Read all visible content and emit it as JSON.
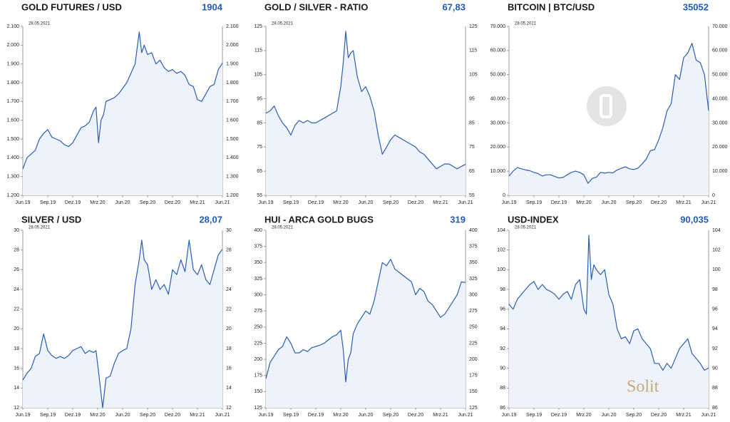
{
  "chart_data": [
    {
      "type": "line",
      "title": "GOLD FUTURES / USD",
      "value_label": "1904",
      "date": "28.05.2021",
      "color": "#2a5db0",
      "x": [
        0,
        0.5,
        1,
        1.5,
        2,
        2.5,
        3,
        3.5,
        4,
        4.5,
        5,
        5.5,
        6,
        6.5,
        7,
        7.5,
        8,
        8.5,
        8.8,
        9.1,
        9.4,
        9.7,
        10,
        10.5,
        11,
        11.5,
        12,
        12.5,
        13,
        13.5,
        14,
        14.3,
        14.6,
        15,
        15.5,
        16,
        16.5,
        17,
        17.5,
        18,
        18.5,
        19,
        19.5,
        20,
        20.5,
        21,
        21.5,
        22,
        22.5,
        23,
        23.5,
        24
      ],
      "values": [
        1340,
        1400,
        1420,
        1440,
        1500,
        1530,
        1550,
        1510,
        1500,
        1490,
        1470,
        1460,
        1480,
        1520,
        1560,
        1570,
        1590,
        1650,
        1670,
        1480,
        1600,
        1630,
        1700,
        1710,
        1720,
        1740,
        1770,
        1800,
        1850,
        1900,
        2070,
        1960,
        2000,
        1950,
        1960,
        1900,
        1920,
        1880,
        1860,
        1870,
        1850,
        1860,
        1840,
        1790,
        1780,
        1710,
        1700,
        1740,
        1780,
        1790,
        1870,
        1904
      ],
      "xlim": [
        0,
        24
      ],
      "xticks": [
        {
          "value": 0,
          "label": "Jun.19"
        },
        {
          "value": 3,
          "label": "Sep.19"
        },
        {
          "value": 6,
          "label": "Dez.19"
        },
        {
          "value": 9,
          "label": "Mrz.20"
        },
        {
          "value": 12,
          "label": "Jun.20"
        },
        {
          "value": 15,
          "label": "Sep.20"
        },
        {
          "value": 18,
          "label": "Dez.20"
        },
        {
          "value": 21,
          "label": "Mrz.21"
        },
        {
          "value": 24,
          "label": "Jun.21"
        }
      ],
      "ylim": [
        1200,
        2100
      ],
      "yticks": [
        {
          "value": 1200,
          "label": "1.200"
        },
        {
          "value": 1300,
          "label": "1.300"
        },
        {
          "value": 1400,
          "label": "1.400"
        },
        {
          "value": 1500,
          "label": "1.500"
        },
        {
          "value": 1600,
          "label": "1.600"
        },
        {
          "value": 1700,
          "label": "1.700"
        },
        {
          "value": 1800,
          "label": "1.800"
        },
        {
          "value": 1900,
          "label": "1.900"
        },
        {
          "value": 2000,
          "label": "2.000"
        },
        {
          "value": 2100,
          "label": "2.100"
        }
      ]
    },
    {
      "type": "line",
      "title": "GOLD / SILVER - RATIO",
      "value_label": "67,83",
      "date": "28.05.2021",
      "color": "#2a5db0",
      "x": [
        0,
        0.5,
        1,
        1.5,
        2,
        2.5,
        3,
        3.5,
        4,
        4.5,
        5,
        5.5,
        6,
        6.5,
        7,
        7.5,
        8,
        8.5,
        9,
        9.3,
        9.6,
        9.9,
        10.2,
        10.5,
        11,
        11.5,
        12,
        12.5,
        13,
        13.5,
        14,
        14.5,
        15,
        15.5,
        16,
        16.5,
        17,
        17.5,
        18,
        18.5,
        19,
        19.5,
        20,
        20.5,
        21,
        21.5,
        22,
        22.5,
        23,
        23.5,
        24
      ],
      "values": [
        89,
        90,
        92,
        88,
        85,
        83,
        80,
        84,
        86,
        85,
        86,
        85,
        85,
        86,
        87,
        88,
        89,
        90,
        100,
        110,
        123,
        112,
        114,
        115,
        104,
        98,
        100,
        96,
        90,
        80,
        72,
        75,
        78,
        80,
        79,
        78,
        77,
        76,
        75,
        73,
        72,
        70,
        68,
        66,
        67,
        68,
        68,
        67,
        66,
        67,
        67.83
      ],
      "xlim": [
        0,
        24
      ],
      "xticks": [
        {
          "value": 0,
          "label": "Jun.19"
        },
        {
          "value": 3,
          "label": "Sep.19"
        },
        {
          "value": 6,
          "label": "Dez.19"
        },
        {
          "value": 9,
          "label": "Mrz.20"
        },
        {
          "value": 12,
          "label": "Jun.20"
        },
        {
          "value": 15,
          "label": "Sep.20"
        },
        {
          "value": 18,
          "label": "Dez.20"
        },
        {
          "value": 21,
          "label": "Mrz.21"
        },
        {
          "value": 24,
          "label": "Jun.21"
        }
      ],
      "ylim": [
        55,
        125
      ],
      "yticks": [
        55,
        65,
        75,
        85,
        95,
        105,
        115,
        125
      ]
    },
    {
      "type": "line",
      "title": "BITCOIN | BTC/USD",
      "value_label": "35052",
      "date": "28.05.2021",
      "color": "#2a5db0",
      "x": [
        0,
        0.5,
        1,
        1.5,
        2,
        2.5,
        3,
        3.5,
        4,
        4.5,
        5,
        5.5,
        6,
        6.5,
        7,
        7.5,
        8,
        8.5,
        9,
        9.5,
        10,
        10.5,
        11,
        11.5,
        12,
        12.5,
        13,
        13.5,
        14,
        14.5,
        15,
        15.5,
        16,
        16.5,
        17,
        17.5,
        18,
        18.5,
        19,
        19.5,
        20,
        20.5,
        21,
        21.5,
        22,
        22.5,
        23,
        23.5,
        24
      ],
      "values": [
        8000,
        10000,
        11500,
        11000,
        10500,
        10200,
        9500,
        9000,
        8000,
        8500,
        8500,
        7800,
        7200,
        7400,
        8500,
        9500,
        10000,
        9500,
        8500,
        5000,
        7000,
        7500,
        9500,
        9200,
        9500,
        9300,
        10500,
        11200,
        11800,
        11000,
        10700,
        11200,
        13000,
        15000,
        18500,
        19000,
        23000,
        28000,
        35000,
        38000,
        50000,
        48000,
        57000,
        59000,
        63000,
        56000,
        55000,
        50000,
        35052
      ],
      "xlim": [
        0,
        24
      ],
      "xticks": [
        {
          "value": 0,
          "label": "Jun.19"
        },
        {
          "value": 3,
          "label": "Sep.19"
        },
        {
          "value": 6,
          "label": "Dez.19"
        },
        {
          "value": 9,
          "label": "Mrz.20"
        },
        {
          "value": 12,
          "label": "Jun.20"
        },
        {
          "value": 15,
          "label": "Sep.20"
        },
        {
          "value": 18,
          "label": "Dez.20"
        },
        {
          "value": 21,
          "label": "Mrz.21"
        },
        {
          "value": 24,
          "label": "Jun.21"
        }
      ],
      "ylim": [
        0,
        70000
      ],
      "yticks": [
        0,
        {
          "value": 10000,
          "label": "10.000"
        },
        {
          "value": 20000,
          "label": "20.000"
        },
        {
          "value": 30000,
          "label": "30.000"
        },
        {
          "value": 40000,
          "label": "40.000"
        },
        {
          "value": 50000,
          "label": "50.000"
        },
        {
          "value": 60000,
          "label": "60.000"
        },
        {
          "value": 70000,
          "label": "70.000"
        }
      ]
    },
    {
      "type": "line",
      "title": "SILVER / USD",
      "value_label": "28,07",
      "date": "28.05.2021",
      "color": "#2a5db0",
      "x": [
        0,
        0.5,
        1,
        1.5,
        2,
        2.5,
        3,
        3.5,
        4,
        4.5,
        5,
        5.5,
        6,
        6.5,
        7,
        7.5,
        8,
        8.5,
        8.8,
        9.2,
        9.6,
        10,
        10.5,
        11,
        11.5,
        12,
        12.5,
        13,
        13.5,
        14,
        14.3,
        14.6,
        15,
        15.5,
        16,
        16.5,
        17,
        17.5,
        18,
        18.5,
        19,
        19.5,
        20,
        20.5,
        21,
        21.5,
        22,
        22.5,
        23,
        23.5,
        24
      ],
      "values": [
        14.8,
        15.5,
        16.0,
        17.2,
        17.5,
        19.5,
        17.8,
        17.3,
        17.0,
        17.2,
        17.0,
        17.3,
        17.8,
        18.0,
        18.2,
        17.5,
        17.8,
        17.6,
        17.8,
        15.0,
        12.0,
        15.0,
        15.2,
        16.5,
        17.5,
        17.8,
        18.0,
        20.0,
        24.5,
        27.0,
        29.0,
        27.0,
        26.5,
        24.0,
        25.0,
        24.0,
        24.5,
        23.5,
        26.0,
        25.5,
        27.0,
        25.8,
        29.0,
        26.0,
        25.5,
        26.5,
        25.0,
        24.5,
        26.0,
        27.5,
        28.07
      ],
      "xlim": [
        0,
        24
      ],
      "xticks": [
        {
          "value": 0,
          "label": "Jun.19"
        },
        {
          "value": 3,
          "label": "Sep.19"
        },
        {
          "value": 6,
          "label": "Dez.19"
        },
        {
          "value": 9,
          "label": "Mrz.20"
        },
        {
          "value": 12,
          "label": "Jun.20"
        },
        {
          "value": 15,
          "label": "Sep.20"
        },
        {
          "value": 18,
          "label": "Dez.20"
        },
        {
          "value": 21,
          "label": "Mrz.21"
        },
        {
          "value": 24,
          "label": "Jun.21"
        }
      ],
      "ylim": [
        12,
        30
      ],
      "yticks": [
        12,
        14,
        16,
        18,
        20,
        22,
        24,
        26,
        28,
        30
      ]
    },
    {
      "type": "line",
      "title": "HUI - ARCA GOLD BUGS",
      "value_label": "319",
      "date": "28.05.2021",
      "color": "#2a5db0",
      "x": [
        0,
        0.5,
        1,
        1.5,
        2,
        2.5,
        3,
        3.5,
        4,
        4.5,
        5,
        5.5,
        6,
        6.5,
        7,
        7.5,
        8,
        8.5,
        9,
        9.3,
        9.6,
        9.9,
        10.2,
        10.5,
        11,
        11.5,
        12,
        12.5,
        13,
        13.5,
        14,
        14.5,
        15,
        15.5,
        16,
        16.5,
        17,
        17.5,
        18,
        18.5,
        19,
        19.5,
        20,
        20.5,
        21,
        21.5,
        22,
        22.5,
        23,
        23.5,
        24
      ],
      "values": [
        170,
        195,
        205,
        215,
        220,
        235,
        225,
        210,
        210,
        215,
        212,
        218,
        220,
        222,
        225,
        230,
        235,
        238,
        245,
        215,
        165,
        200,
        210,
        240,
        255,
        265,
        275,
        270,
        290,
        320,
        350,
        345,
        355,
        340,
        335,
        330,
        325,
        320,
        300,
        310,
        305,
        290,
        285,
        275,
        265,
        270,
        280,
        290,
        300,
        320,
        319
      ],
      "xlim": [
        0,
        24
      ],
      "xticks": [
        {
          "value": 0,
          "label": "Jun.19"
        },
        {
          "value": 3,
          "label": "Sep.19"
        },
        {
          "value": 6,
          "label": "Dez.19"
        },
        {
          "value": 9,
          "label": "Mrz.20"
        },
        {
          "value": 12,
          "label": "Jun.20"
        },
        {
          "value": 15,
          "label": "Sep.20"
        },
        {
          "value": 18,
          "label": "Dez.20"
        },
        {
          "value": 21,
          "label": "Mrz.21"
        },
        {
          "value": 24,
          "label": "Jun.21"
        }
      ],
      "ylim": [
        125,
        400
      ],
      "yticks": [
        125,
        150,
        175,
        200,
        225,
        250,
        275,
        300,
        325,
        350,
        375,
        400
      ]
    },
    {
      "type": "line",
      "title": "USD-INDEX",
      "value_label": "90,035",
      "date": "28.05.2021",
      "watermark": "Solit",
      "color": "#2a5db0",
      "x": [
        0,
        0.5,
        1,
        1.5,
        2,
        2.5,
        3,
        3.5,
        4,
        4.5,
        5,
        5.5,
        6,
        6.5,
        7,
        7.5,
        8,
        8.5,
        9,
        9.3,
        9.6,
        9.9,
        10.2,
        10.5,
        11,
        11.5,
        12,
        12.5,
        13,
        13.5,
        14,
        14.5,
        15,
        15.5,
        16,
        16.5,
        17,
        17.5,
        18,
        18.5,
        19,
        19.5,
        20,
        20.5,
        21,
        21.5,
        22,
        22.5,
        23,
        23.5,
        24
      ],
      "values": [
        96.5,
        96.0,
        97.0,
        97.5,
        98.0,
        98.5,
        98.8,
        98.0,
        98.5,
        98.0,
        97.8,
        97.5,
        97.0,
        97.5,
        97.8,
        97.0,
        98.5,
        99.0,
        96.0,
        95.5,
        103.5,
        99.0,
        100.5,
        100.0,
        99.5,
        100.0,
        97.5,
        96.5,
        94.0,
        93.0,
        93.2,
        92.5,
        93.8,
        94.0,
        93.0,
        92.5,
        92.0,
        90.5,
        90.5,
        89.8,
        90.5,
        90.0,
        91.0,
        92.0,
        92.5,
        93.0,
        91.5,
        91.0,
        90.5,
        89.8,
        90.035
      ],
      "xlim": [
        0,
        24
      ],
      "xticks": [
        {
          "value": 0,
          "label": "Jun.19"
        },
        {
          "value": 3,
          "label": "Sep.19"
        },
        {
          "value": 6,
          "label": "Dez.19"
        },
        {
          "value": 9,
          "label": "Mrz.20"
        },
        {
          "value": 12,
          "label": "Jun.20"
        },
        {
          "value": 15,
          "label": "Sep.20"
        },
        {
          "value": 18,
          "label": "Dez.20"
        },
        {
          "value": 21,
          "label": "Mrz.21"
        },
        {
          "value": 24,
          "label": "Jun.21"
        }
      ],
      "ylim": [
        86,
        104
      ],
      "yticks": [
        86,
        88,
        90,
        92,
        94,
        96,
        98,
        100,
        102,
        104
      ]
    }
  ]
}
